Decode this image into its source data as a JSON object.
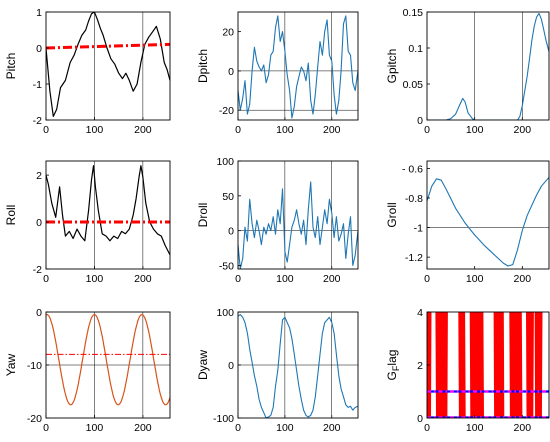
{
  "colors": {
    "black_line": "#000000",
    "blue_line": "#1f77b4",
    "red_dashed": "#ff0000",
    "orange_line": "#d95319",
    "flag_blue": "#0000ff",
    "flag_magenta": "#ff00ff"
  },
  "chart_data": [
    {
      "id": "pitch",
      "type": "line",
      "ylabel": "Pitch",
      "xlim": [
        0,
        256
      ],
      "ylim": [
        -2,
        1
      ],
      "xticks": [
        0,
        100,
        200
      ],
      "yticks": [
        -2,
        -1,
        0,
        1
      ],
      "series": [
        {
          "style": "black",
          "x": [
            0,
            8,
            15,
            22,
            30,
            40,
            50,
            58,
            66,
            74,
            82,
            88,
            94,
            100,
            106,
            112,
            118,
            126,
            134,
            142,
            150,
            158,
            165,
            172,
            180,
            188,
            196,
            204,
            212,
            220,
            228,
            236,
            244,
            250,
            256
          ],
          "y": [
            0.0,
            -1.2,
            -1.9,
            -1.7,
            -1.1,
            -0.9,
            -0.4,
            -0.2,
            0.1,
            0.35,
            0.5,
            0.75,
            0.95,
            1.0,
            0.8,
            0.55,
            0.35,
            0.0,
            -0.3,
            -0.45,
            -0.7,
            -0.85,
            -0.7,
            -0.9,
            -1.2,
            -1.0,
            -0.4,
            0.1,
            0.3,
            0.45,
            0.6,
            0.25,
            -0.4,
            -0.6,
            -0.9
          ]
        },
        {
          "style": "red-dashdot",
          "x": [
            0,
            256
          ],
          "y": [
            0.0,
            0.1
          ]
        }
      ],
      "vlines": [
        100,
        200
      ]
    },
    {
      "id": "dpitch",
      "type": "line",
      "ylabel": "Dpitch",
      "xlim": [
        0,
        256
      ],
      "ylim": [
        -25,
        30
      ],
      "xticks": [
        0,
        100,
        200
      ],
      "yticks": [
        -20,
        0,
        20
      ],
      "series": [
        {
          "style": "blue",
          "x": [
            0,
            5,
            10,
            15,
            20,
            25,
            30,
            35,
            40,
            45,
            50,
            55,
            60,
            65,
            70,
            75,
            80,
            85,
            90,
            95,
            100,
            105,
            110,
            115,
            120,
            125,
            130,
            135,
            140,
            145,
            150,
            155,
            160,
            165,
            170,
            175,
            180,
            185,
            190,
            195,
            200,
            205,
            210,
            215,
            220,
            225,
            230,
            235,
            240,
            245,
            250,
            256
          ],
          "y": [
            -10,
            -20,
            -14,
            -5,
            -22,
            -17,
            0,
            12,
            5,
            2,
            0,
            3,
            -6,
            -2,
            8,
            10,
            22,
            28,
            15,
            20,
            10,
            -2,
            -10,
            -24,
            -18,
            -8,
            -3,
            2,
            0,
            -5,
            4,
            -15,
            -22,
            -12,
            2,
            15,
            8,
            20,
            26,
            8,
            5,
            -12,
            -22,
            -15,
            0,
            24,
            28,
            10,
            8,
            -6,
            -10,
            0
          ]
        }
      ],
      "hlines": [
        0,
        -20
      ],
      "vlines": [
        100,
        200
      ]
    },
    {
      "id": "gpitch",
      "type": "line",
      "ylabel": "Gpitch",
      "xlim": [
        0,
        256
      ],
      "ylim": [
        0,
        0.15
      ],
      "xticks": [
        0,
        100,
        200
      ],
      "yticks": [
        0,
        0.05,
        0.1,
        0.15
      ],
      "ytick_labels": [
        "0",
        "0.05",
        "0.1",
        "0.15"
      ],
      "series": [
        {
          "style": "blue",
          "x": [
            0,
            40,
            50,
            60,
            68,
            75,
            80,
            86,
            95,
            100,
            190,
            195,
            200,
            205,
            210,
            215,
            220,
            225,
            230,
            235,
            240,
            245,
            250,
            256
          ],
          "y": [
            0,
            0,
            0.002,
            0.008,
            0.02,
            0.03,
            0.025,
            0.01,
            0.002,
            0,
            0,
            0.005,
            0.02,
            0.04,
            0.06,
            0.085,
            0.11,
            0.13,
            0.143,
            0.148,
            0.14,
            0.125,
            0.11,
            0.095
          ]
        }
      ],
      "vlines": [
        100,
        200
      ]
    },
    {
      "id": "roll",
      "type": "line",
      "ylabel": "Roll",
      "xlim": [
        0,
        256
      ],
      "ylim": [
        -2,
        2.6
      ],
      "xticks": [
        0,
        100,
        200
      ],
      "yticks": [
        -2,
        0,
        2
      ],
      "series": [
        {
          "style": "black",
          "x": [
            0,
            5,
            12,
            20,
            28,
            34,
            40,
            48,
            56,
            64,
            72,
            80,
            88,
            94,
            98,
            102,
            108,
            116,
            124,
            132,
            140,
            148,
            156,
            164,
            172,
            180,
            186,
            192,
            196,
            200,
            206,
            214,
            222,
            230,
            238,
            246,
            256
          ],
          "y": [
            2.0,
            1.6,
            0.8,
            0.2,
            1.5,
            0.3,
            -0.6,
            -0.4,
            -0.7,
            -0.3,
            -0.6,
            -0.8,
            0.5,
            1.8,
            2.4,
            1.5,
            0.5,
            -0.5,
            -0.6,
            -0.8,
            -0.6,
            -0.7,
            -0.4,
            -0.5,
            -0.3,
            0.3,
            1.0,
            1.9,
            2.4,
            1.9,
            0.8,
            0.0,
            -0.3,
            -0.5,
            -0.6,
            -1.0,
            -1.4
          ]
        },
        {
          "style": "red-dashdot",
          "x": [
            0,
            256
          ],
          "y": [
            0,
            0
          ]
        }
      ],
      "vlines": [
        100,
        200
      ]
    },
    {
      "id": "droll",
      "type": "line",
      "ylabel": "Droll",
      "xlim": [
        0,
        256
      ],
      "ylim": [
        -55,
        100
      ],
      "xticks": [
        0,
        100,
        200
      ],
      "yticks": [
        -50,
        0,
        50,
        100
      ],
      "series": [
        {
          "style": "blue",
          "x": [
            0,
            5,
            10,
            15,
            20,
            25,
            30,
            35,
            40,
            45,
            50,
            55,
            60,
            65,
            70,
            75,
            80,
            85,
            90,
            95,
            100,
            105,
            110,
            115,
            120,
            125,
            130,
            135,
            140,
            145,
            150,
            155,
            160,
            165,
            170,
            175,
            180,
            185,
            190,
            195,
            200,
            205,
            210,
            215,
            220,
            225,
            230,
            235,
            240,
            245,
            250,
            256
          ],
          "y": [
            -20,
            -55,
            -40,
            5,
            -15,
            45,
            10,
            -10,
            15,
            0,
            -20,
            5,
            -5,
            10,
            0,
            20,
            -5,
            30,
            10,
            60,
            -30,
            -45,
            -20,
            5,
            15,
            30,
            10,
            -5,
            15,
            -20,
            30,
            70,
            5,
            -10,
            20,
            -20,
            5,
            30,
            10,
            45,
            25,
            -10,
            20,
            -15,
            -5,
            10,
            -40,
            -5,
            20,
            -50,
            -35,
            0
          ]
        }
      ],
      "hlines": [
        0
      ],
      "vlines": [
        100,
        200
      ]
    },
    {
      "id": "groll",
      "type": "line",
      "ylabel": "Groll",
      "xlim": [
        0,
        256
      ],
      "ylim": [
        -1.28,
        -0.55
      ],
      "xticks": [
        0,
        100,
        200
      ],
      "yticks": [
        -1.2,
        -1,
        -0.8,
        -0.6
      ],
      "ytick_labels": [
        "-1.2",
        "-1",
        "-0.8",
        "- 0.6"
      ],
      "series": [
        {
          "style": "blue",
          "x": [
            0,
            10,
            20,
            30,
            40,
            60,
            80,
            100,
            120,
            140,
            160,
            170,
            180,
            190,
            200,
            210,
            220,
            230,
            240,
            256
          ],
          "y": [
            -0.82,
            -0.72,
            -0.67,
            -0.68,
            -0.74,
            -0.87,
            -0.97,
            -1.05,
            -1.12,
            -1.18,
            -1.24,
            -1.26,
            -1.25,
            -1.15,
            -1.02,
            -0.92,
            -0.85,
            -0.78,
            -0.72,
            -0.66
          ]
        }
      ],
      "hlines": [
        -1
      ]
    },
    {
      "id": "yaw",
      "type": "line",
      "ylabel": "Yaw",
      "xlim": [
        0,
        256
      ],
      "ylim": [
        -20,
        0
      ],
      "xticks": [
        0,
        100,
        200
      ],
      "yticks": [
        -20,
        -10,
        0
      ],
      "series": [
        {
          "style": "orange",
          "sine": {
            "center": -9,
            "amp": 8.5,
            "period": 98,
            "phase_x": 100
          }
        },
        {
          "style": "red-dashdot",
          "x": [
            0,
            256
          ],
          "y": [
            -8,
            -8
          ]
        }
      ],
      "hlines": [
        -10
      ],
      "vlines": [
        100,
        200
      ]
    },
    {
      "id": "dyaw",
      "type": "line",
      "ylabel": "Dyaw",
      "xlim": [
        0,
        256
      ],
      "ylim": [
        -100,
        100
      ],
      "xticks": [
        0,
        100,
        200
      ],
      "yticks": [
        -100,
        0,
        100
      ],
      "series": [
        {
          "style": "blue",
          "x": [
            0,
            5,
            10,
            15,
            20,
            25,
            30,
            35,
            40,
            45,
            50,
            55,
            60,
            65,
            70,
            75,
            80,
            85,
            90,
            95,
            100,
            105,
            110,
            115,
            120,
            125,
            130,
            135,
            140,
            145,
            150,
            155,
            160,
            165,
            170,
            175,
            180,
            185,
            190,
            195,
            200,
            205,
            210,
            215,
            220,
            225,
            230,
            235,
            240,
            245,
            250,
            256
          ],
          "y": [
            92,
            95,
            90,
            80,
            60,
            30,
            5,
            -20,
            -40,
            -65,
            -80,
            -90,
            -100,
            -98,
            -95,
            -80,
            -40,
            -10,
            40,
            85,
            90,
            80,
            70,
            50,
            20,
            -10,
            -40,
            -65,
            -85,
            -95,
            -98,
            -95,
            -85,
            -60,
            -20,
            20,
            60,
            80,
            85,
            90,
            80,
            60,
            20,
            -20,
            -45,
            -60,
            -75,
            -80,
            -78,
            -85,
            -80,
            -78
          ]
        }
      ],
      "hlines": [
        0
      ],
      "vlines": [
        100,
        200
      ]
    },
    {
      "id": "gflag",
      "type": "line",
      "ylabel": "G",
      "ylabel_sub": "F",
      "ylabel_rest": "lag",
      "xlim": [
        0,
        256
      ],
      "ylim": [
        0,
        4
      ],
      "xticks": [
        0,
        100,
        200
      ],
      "yticks": [
        0,
        2,
        4
      ],
      "flag_bursts": [
        [
          0,
          8
        ],
        [
          20,
          42
        ],
        [
          68,
          80
        ],
        [
          92,
          118
        ],
        [
          142,
          160
        ],
        [
          175,
          198
        ],
        [
          210,
          222
        ],
        [
          228,
          240
        ]
      ],
      "series": [
        {
          "style": "flag-blue-solid",
          "x": [
            0,
            256
          ],
          "y": [
            1,
            1
          ]
        },
        {
          "style": "flag-magenta-dash",
          "x": [
            0,
            256
          ],
          "y": [
            1,
            1
          ]
        },
        {
          "style": "flag-blue-solid",
          "x": [
            0,
            256
          ],
          "y": [
            0.02,
            0.02
          ]
        },
        {
          "style": "flag-magenta-dash",
          "x": [
            0,
            256
          ],
          "y": [
            0.02,
            0.02
          ]
        }
      ]
    }
  ]
}
